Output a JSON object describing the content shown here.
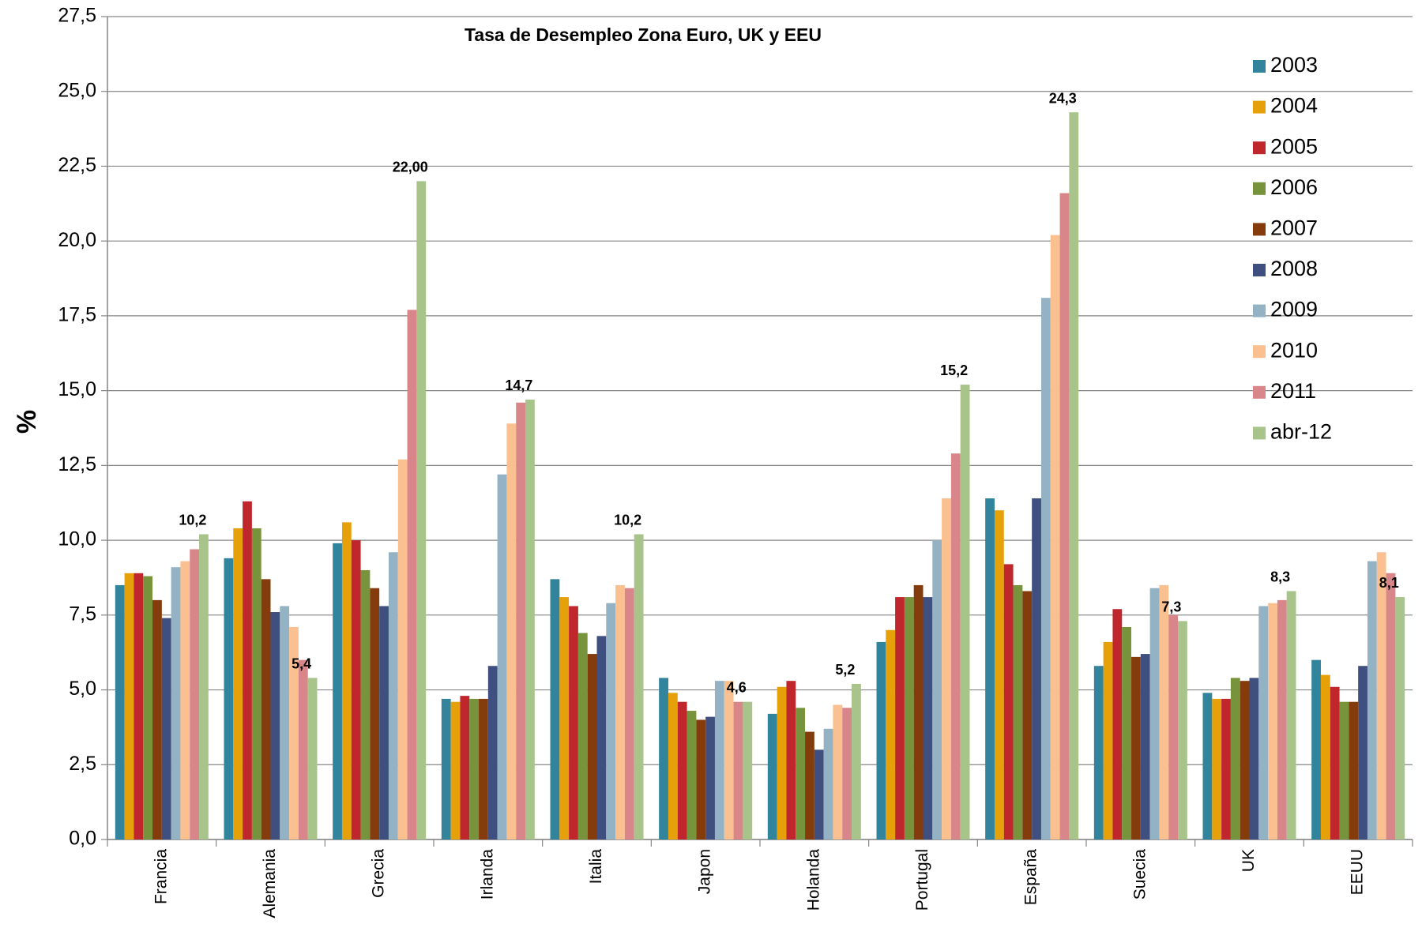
{
  "chart_data": {
    "type": "bar",
    "title": "Tasa de Desempleo Zona Euro, UK y EEU",
    "y_label": "%",
    "categories": [
      "Francia",
      "Alemania",
      "Grecia",
      "Irlanda",
      "Italia",
      "Japon",
      "Holanda",
      "Portugal",
      "España",
      "Suecia",
      "UK",
      "EEUU"
    ],
    "series": [
      {
        "name": "2003",
        "color": "#31849b",
        "values": [
          8.5,
          9.4,
          9.9,
          4.7,
          8.7,
          5.4,
          4.2,
          6.6,
          11.4,
          5.8,
          4.9,
          6.0
        ]
      },
      {
        "name": "2004",
        "color": "#e6a00a",
        "values": [
          8.9,
          10.4,
          10.6,
          4.6,
          8.1,
          4.9,
          5.1,
          7.0,
          11.0,
          6.6,
          4.7,
          5.5
        ]
      },
      {
        "name": "2005",
        "color": "#c0272d",
        "values": [
          8.9,
          11.3,
          10.0,
          4.8,
          7.8,
          4.6,
          5.3,
          8.1,
          9.2,
          7.7,
          4.7,
          5.1
        ]
      },
      {
        "name": "2006",
        "color": "#77933c",
        "values": [
          8.8,
          10.4,
          9.0,
          4.7,
          6.9,
          4.3,
          4.4,
          8.1,
          8.5,
          7.1,
          5.4,
          4.6
        ]
      },
      {
        "name": "2007",
        "color": "#843c0c",
        "values": [
          8.0,
          8.7,
          8.4,
          4.7,
          6.2,
          4.0,
          3.6,
          8.5,
          8.3,
          6.1,
          5.3,
          4.6
        ]
      },
      {
        "name": "2008",
        "color": "#3f4f7f",
        "values": [
          7.4,
          7.6,
          7.8,
          5.8,
          6.8,
          4.1,
          3.0,
          8.1,
          11.4,
          6.2,
          5.4,
          5.8
        ]
      },
      {
        "name": "2009",
        "color": "#93b3c5",
        "values": [
          9.1,
          7.8,
          9.6,
          12.2,
          7.9,
          5.3,
          3.7,
          10.0,
          18.1,
          8.4,
          7.8,
          9.3
        ]
      },
      {
        "name": "2010",
        "color": "#fac08f",
        "values": [
          9.3,
          7.1,
          12.7,
          13.9,
          8.5,
          5.3,
          4.5,
          11.4,
          20.2,
          8.5,
          7.9,
          9.6
        ]
      },
      {
        "name": "2011",
        "color": "#d9868a",
        "values": [
          9.7,
          6.0,
          17.7,
          14.6,
          8.4,
          4.6,
          4.4,
          12.9,
          21.6,
          7.5,
          8.0,
          8.9
        ]
      },
      {
        "name": "abr-12",
        "color": "#a8c48a",
        "values": [
          10.2,
          5.4,
          22.0,
          14.7,
          10.2,
          4.6,
          5.2,
          15.2,
          24.3,
          7.3,
          8.3,
          8.1
        ],
        "value_labels": [
          "10,2",
          "5,4",
          "22,00",
          "14,7",
          "10,2",
          "4,6",
          "5,2",
          "15,2",
          "24,3",
          "7,3",
          "8,3",
          "8,1"
        ]
      }
    ],
    "ylim": [
      0,
      27.5
    ],
    "yticks": [
      {
        "value": 0,
        "label": "0,0"
      },
      {
        "value": 2.5,
        "label": "2,5"
      },
      {
        "value": 5,
        "label": "5,0"
      },
      {
        "value": 7.5,
        "label": "7,5"
      },
      {
        "value": 10,
        "label": "10,0"
      },
      {
        "value": 12.5,
        "label": "12,5"
      },
      {
        "value": 15,
        "label": "15,0"
      },
      {
        "value": 17.5,
        "label": "17,5"
      },
      {
        "value": 20,
        "label": "20,0"
      },
      {
        "value": 22.5,
        "label": "22,5"
      },
      {
        "value": 25,
        "label": "25,0"
      },
      {
        "value": 27.5,
        "label": "27,5"
      }
    ],
    "grid": true,
    "legend": "right"
  }
}
